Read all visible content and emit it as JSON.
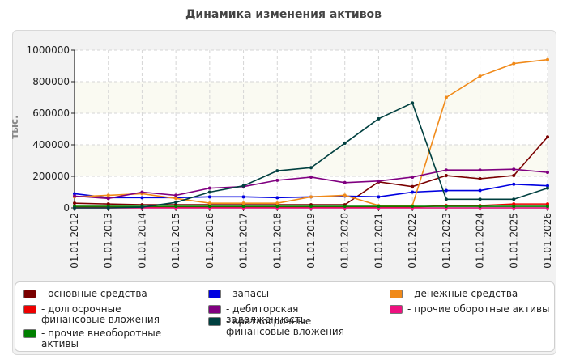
{
  "chart_data": {
    "type": "line",
    "title": "Динамика изменения активов",
    "ylabel": "тыс.",
    "ylim": [
      0,
      1000000
    ],
    "yticks": [
      0,
      200000,
      400000,
      600000,
      800000,
      1000000
    ],
    "x": [
      "01.01.2012",
      "01.01.2013",
      "01.01.2014",
      "01.01.2015",
      "01.01.2016",
      "01.01.2017",
      "01.01.2018",
      "01.01.2019",
      "01.01.2020",
      "01.01.2021",
      "01.01.2022",
      "01.01.2023",
      "01.01.2024",
      "01.01.2025",
      "01.01.2026"
    ],
    "grid": true,
    "legend_position": "bottom",
    "series": [
      {
        "name": "основные средства",
        "color": "#7a0000",
        "values": [
          30000,
          25000,
          20000,
          20000,
          20000,
          20000,
          20000,
          20000,
          20000,
          165000,
          135000,
          205000,
          185000,
          205000,
          450000
        ]
      },
      {
        "name": "запасы",
        "color": "#0000e0",
        "values": [
          90000,
          65000,
          65000,
          65000,
          70000,
          70000,
          65000,
          70000,
          75000,
          70000,
          100000,
          110000,
          110000,
          150000,
          140000
        ]
      },
      {
        "name": "денежные средства",
        "color": "#f08a1a",
        "values": [
          70000,
          80000,
          90000,
          60000,
          30000,
          30000,
          30000,
          70000,
          80000,
          15000,
          15000,
          700000,
          835000,
          915000,
          940000
        ]
      },
      {
        "name": "долгосрочные финансовые вложения",
        "color": "#ee0000",
        "values": [
          5000,
          5000,
          5000,
          5000,
          5000,
          5000,
          5000,
          5000,
          5000,
          5000,
          5000,
          15000,
          15000,
          25000,
          25000
        ]
      },
      {
        "name": "дебиторская задолженность",
        "color": "#800080",
        "values": [
          75000,
          60000,
          100000,
          80000,
          125000,
          135000,
          175000,
          195000,
          160000,
          170000,
          195000,
          240000,
          240000,
          245000,
          225000
        ]
      },
      {
        "name": "прочие оборотные активы",
        "color": "#ee1180",
        "values": [
          0,
          0,
          0,
          0,
          0,
          0,
          0,
          0,
          0,
          0,
          0,
          0,
          0,
          0,
          0
        ]
      },
      {
        "name": "прочие внеоборотные активы",
        "color": "#008000",
        "values": [
          10000,
          10000,
          10000,
          10000,
          10000,
          10000,
          10000,
          10000,
          10000,
          10000,
          10000,
          10000,
          10000,
          10000,
          10000
        ]
      },
      {
        "name": "краткосрочные финансовые вложения",
        "color": "#004040",
        "values": [
          0,
          0,
          5000,
          35000,
          100000,
          140000,
          235000,
          255000,
          410000,
          565000,
          665000,
          55000,
          55000,
          55000,
          125000
        ]
      }
    ],
    "legend_layout": [
      {
        "series": 0,
        "col": 0,
        "row": 0
      },
      {
        "series": 3,
        "col": 0,
        "row": 1
      },
      {
        "series": 6,
        "col": 0,
        "row": 2
      },
      {
        "series": 1,
        "col": 1,
        "row": 0
      },
      {
        "series": 4,
        "col": 1,
        "row": 1
      },
      {
        "series": 7,
        "col": 1,
        "row": 2
      },
      {
        "series": 2,
        "col": 2,
        "row": 0
      },
      {
        "series": 5,
        "col": 2,
        "row": 1
      }
    ]
  }
}
